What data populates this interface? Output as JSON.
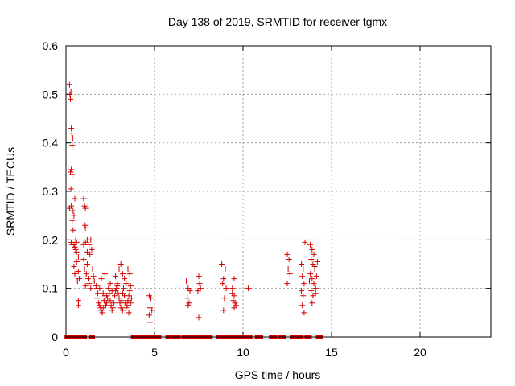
{
  "chart_data": {
    "type": "scatter",
    "title": "Day 138 of 2019, SRMTID for receiver tgmx",
    "xlabel": "GPS time / hours",
    "ylabel": "SRMTID / TECUs",
    "xlim": [
      0,
      24
    ],
    "ylim": [
      0,
      0.6
    ],
    "xticks": [
      "0",
      "5",
      "10",
      "15",
      "20"
    ],
    "yticks": [
      "0",
      "0.1",
      "0.2",
      "0.3",
      "0.4",
      "0.5",
      "0.6"
    ],
    "grid": true,
    "marker": "plus",
    "color": "#d40000",
    "series": [
      {
        "points": [
          [
            0.2,
            0.52
          ],
          [
            0.22,
            0.5
          ],
          [
            0.25,
            0.49
          ],
          [
            0.28,
            0.505
          ],
          [
            0.3,
            0.43
          ],
          [
            0.33,
            0.42
          ],
          [
            0.35,
            0.395
          ],
          [
            0.38,
            0.41
          ],
          [
            0.25,
            0.34
          ],
          [
            0.3,
            0.345
          ],
          [
            0.35,
            0.335
          ],
          [
            0.28,
            0.305
          ],
          [
            0.2,
            0.265
          ],
          [
            0.3,
            0.27
          ],
          [
            0.4,
            0.26
          ],
          [
            0.45,
            0.25
          ],
          [
            0.35,
            0.24
          ],
          [
            0.5,
            0.285
          ],
          [
            0.4,
            0.22
          ],
          [
            0.3,
            0.195
          ],
          [
            0.35,
            0.19
          ],
          [
            0.45,
            0.19
          ],
          [
            0.5,
            0.185
          ],
          [
            0.55,
            0.2
          ],
          [
            0.6,
            0.195
          ],
          [
            0.55,
            0.18
          ],
          [
            0.6,
            0.175
          ],
          [
            0.7,
            0.165
          ],
          [
            0.6,
            0.155
          ],
          [
            0.45,
            0.145
          ],
          [
            0.5,
            0.13
          ],
          [
            0.7,
            0.135
          ],
          [
            0.75,
            0.12
          ],
          [
            0.65,
            0.115
          ],
          [
            0.7,
            0.075
          ],
          [
            0.7,
            0.065
          ],
          [
            1.0,
            0.285
          ],
          [
            1.05,
            0.27
          ],
          [
            1.1,
            0.265
          ],
          [
            1.08,
            0.23
          ],
          [
            1.1,
            0.225
          ],
          [
            1.0,
            0.19
          ],
          [
            1.1,
            0.195
          ],
          [
            1.2,
            0.2
          ],
          [
            1.3,
            0.19
          ],
          [
            1.4,
            0.2
          ],
          [
            1.2,
            0.175
          ],
          [
            1.35,
            0.17
          ],
          [
            1.45,
            0.18
          ],
          [
            1.0,
            0.16
          ],
          [
            1.2,
            0.15
          ],
          [
            1.05,
            0.14
          ],
          [
            1.15,
            0.13
          ],
          [
            1.25,
            0.12
          ],
          [
            1.3,
            0.11
          ],
          [
            1.1,
            0.105
          ],
          [
            1.4,
            0.1
          ],
          [
            1.5,
            0.14
          ],
          [
            1.55,
            0.125
          ],
          [
            1.6,
            0.115
          ],
          [
            1.7,
            0.105
          ],
          [
            1.75,
            0.1
          ],
          [
            1.8,
            0.09
          ],
          [
            1.75,
            0.08
          ],
          [
            1.85,
            0.07
          ],
          [
            1.9,
            0.065
          ],
          [
            1.95,
            0.06
          ],
          [
            2.0,
            0.055
          ],
          [
            2.05,
            0.05
          ],
          [
            2.1,
            0.06
          ],
          [
            2.15,
            0.075
          ],
          [
            2.2,
            0.085
          ],
          [
            2.25,
            0.065
          ],
          [
            2.3,
            0.07
          ],
          [
            2.35,
            0.08
          ],
          [
            2.4,
            0.1
          ],
          [
            2.45,
            0.09
          ],
          [
            2.5,
            0.075
          ],
          [
            2.55,
            0.065
          ],
          [
            2.6,
            0.055
          ],
          [
            2.65,
            0.06
          ],
          [
            2.7,
            0.07
          ],
          [
            2.75,
            0.085
          ],
          [
            2.8,
            0.095
          ],
          [
            2.85,
            0.1
          ],
          [
            2.9,
            0.11
          ],
          [
            2.95,
            0.09
          ],
          [
            3.0,
            0.08
          ],
          [
            3.05,
            0.07
          ],
          [
            3.1,
            0.06
          ],
          [
            3.15,
            0.075
          ],
          [
            3.2,
            0.09
          ],
          [
            3.25,
            0.1
          ],
          [
            3.3,
            0.085
          ],
          [
            3.35,
            0.07
          ],
          [
            3.4,
            0.06
          ],
          [
            3.45,
            0.065
          ],
          [
            3.5,
            0.075
          ],
          [
            3.55,
            0.085
          ],
          [
            3.6,
            0.095
          ],
          [
            3.65,
            0.105
          ],
          [
            2.0,
            0.12
          ],
          [
            2.2,
            0.13
          ],
          [
            2.5,
            0.11
          ],
          [
            2.8,
            0.125
          ],
          [
            3.0,
            0.14
          ],
          [
            3.1,
            0.15
          ],
          [
            3.2,
            0.13
          ],
          [
            3.3,
            0.12
          ],
          [
            3.5,
            0.14
          ],
          [
            3.6,
            0.13
          ],
          [
            3.4,
            0.11
          ],
          [
            2.9,
            0.105
          ],
          [
            2.6,
            0.095
          ],
          [
            2.3,
            0.085
          ],
          [
            2.1,
            0.09
          ],
          [
            1.9,
            0.1
          ],
          [
            3.7,
            0.08
          ],
          [
            3.65,
            0.07
          ],
          [
            3.55,
            0.05
          ],
          [
            3.2,
            0.055
          ],
          [
            4.7,
            0.085
          ],
          [
            4.8,
            0.08
          ],
          [
            4.75,
            0.06
          ],
          [
            4.85,
            0.055
          ],
          [
            4.7,
            0.045
          ],
          [
            4.75,
            0.03
          ],
          [
            6.8,
            0.115
          ],
          [
            6.9,
            0.1
          ],
          [
            7.0,
            0.095
          ],
          [
            6.85,
            0.08
          ],
          [
            6.95,
            0.07
          ],
          [
            6.9,
            0.065
          ],
          [
            7.5,
            0.125
          ],
          [
            7.55,
            0.11
          ],
          [
            7.6,
            0.1
          ],
          [
            7.45,
            0.095
          ],
          [
            7.5,
            0.04
          ],
          [
            8.8,
            0.15
          ],
          [
            9.0,
            0.14
          ],
          [
            8.9,
            0.12
          ],
          [
            8.85,
            0.11
          ],
          [
            9.05,
            0.1
          ],
          [
            8.95,
            0.08
          ],
          [
            8.9,
            0.055
          ],
          [
            9.4,
            0.09
          ],
          [
            9.5,
            0.085
          ],
          [
            9.45,
            0.075
          ],
          [
            9.55,
            0.07
          ],
          [
            9.5,
            0.06
          ],
          [
            9.6,
            0.065
          ],
          [
            9.4,
            0.1
          ],
          [
            9.5,
            0.12
          ],
          [
            10.3,
            0.1
          ],
          [
            12.5,
            0.17
          ],
          [
            12.6,
            0.16
          ],
          [
            12.55,
            0.14
          ],
          [
            12.65,
            0.13
          ],
          [
            12.5,
            0.11
          ],
          [
            13.3,
            0.15
          ],
          [
            13.4,
            0.14
          ],
          [
            13.35,
            0.125
          ],
          [
            13.45,
            0.11
          ],
          [
            13.3,
            0.095
          ],
          [
            13.4,
            0.085
          ],
          [
            13.35,
            0.065
          ],
          [
            13.45,
            0.05
          ],
          [
            13.5,
            0.195
          ],
          [
            13.8,
            0.19
          ],
          [
            13.9,
            0.18
          ],
          [
            14.0,
            0.17
          ],
          [
            13.85,
            0.16
          ],
          [
            13.95,
            0.15
          ],
          [
            14.05,
            0.14
          ],
          [
            13.8,
            0.13
          ],
          [
            13.9,
            0.12
          ],
          [
            14.0,
            0.11
          ],
          [
            14.1,
            0.1
          ],
          [
            13.85,
            0.095
          ],
          [
            13.95,
            0.085
          ],
          [
            14.05,
            0.145
          ],
          [
            14.2,
            0.155
          ],
          [
            14.15,
            0.125
          ],
          [
            13.75,
            0.115
          ],
          [
            14.1,
            0.09
          ],
          [
            13.9,
            0.07
          ]
        ]
      }
    ],
    "zero_intervals": [
      [
        0.05,
        0.35
      ],
      [
        0.6,
        0.9
      ],
      [
        0.95,
        1.05
      ],
      [
        1.4,
        1.5
      ],
      [
        3.8,
        3.95
      ],
      [
        4.0,
        4.45
      ],
      [
        4.6,
        4.9
      ],
      [
        5.15,
        5.25
      ],
      [
        5.75,
        6.35
      ],
      [
        6.65,
        6.9
      ],
      [
        7.0,
        7.3
      ],
      [
        7.5,
        7.75
      ],
      [
        7.9,
        8.15
      ],
      [
        8.6,
        8.75
      ],
      [
        8.8,
        9.0
      ],
      [
        9.2,
        9.4
      ],
      [
        9.45,
        9.75
      ],
      [
        10.0,
        10.4
      ],
      [
        10.8,
        11.0
      ],
      [
        11.6,
        11.8
      ],
      [
        12.1,
        12.3
      ],
      [
        12.8,
        12.95
      ],
      [
        13.1,
        13.3
      ],
      [
        13.6,
        13.75
      ],
      [
        14.25,
        14.4
      ]
    ]
  }
}
